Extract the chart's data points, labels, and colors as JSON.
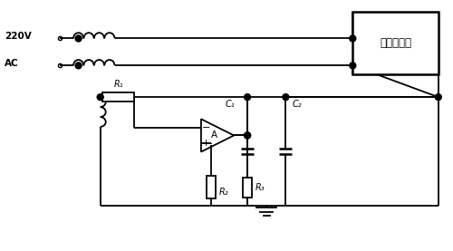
{
  "bg_color": "#ffffff",
  "line_color": "#000000",
  "line_width": 1.3,
  "fig_width": 5.0,
  "fig_height": 2.77,
  "label_220V": "220V",
  "label_AC": "AC",
  "label_noise_box": "噪声源设备",
  "label_R1": "R₁",
  "label_R2": "R₂",
  "label_R3": "R₃",
  "label_C1": "C₁",
  "label_C2": "C₂",
  "label_A": "A",
  "label_minus": "−",
  "label_plus": "+"
}
